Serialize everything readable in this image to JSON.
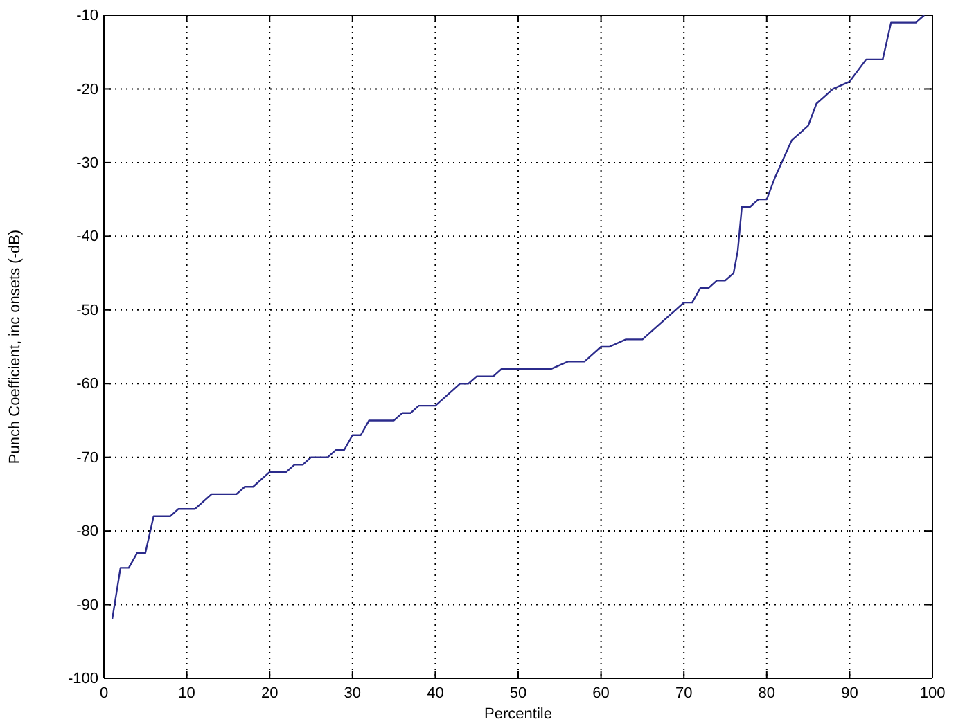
{
  "chart_data": {
    "type": "line",
    "xlabel": "Percentile",
    "ylabel": "Punch Coefficient, inc onsets (-dB)",
    "x": [
      1,
      2,
      3,
      4,
      5,
      6,
      8,
      9,
      11,
      13,
      16,
      17,
      18,
      20,
      22,
      23,
      24,
      25,
      27,
      28,
      29,
      30,
      31,
      32,
      35,
      36,
      37,
      38,
      40,
      42,
      43,
      44,
      45,
      47,
      48,
      54,
      56,
      58,
      60,
      61,
      63,
      65,
      68,
      69,
      70,
      71,
      72,
      73,
      74,
      75,
      76,
      76.5,
      77,
      78,
      79,
      80,
      81,
      83,
      84,
      85,
      86,
      87,
      88,
      90,
      92,
      94,
      95,
      98,
      99
    ],
    "series": [
      {
        "color": "#2b2b8c",
        "values": [
          -92,
          -85,
          -85,
          -83,
          -83,
          -78,
          -78,
          -77,
          -77,
          -75,
          -75,
          -74,
          -74,
          -72,
          -72,
          -71,
          -71,
          -70,
          -70,
          -69,
          -69,
          -67,
          -67,
          -65,
          -65,
          -64,
          -64,
          -63,
          -63,
          -61,
          -60,
          -60,
          -59,
          -59,
          -58,
          -58,
          -57,
          -57,
          -55,
          -55,
          -54,
          -54,
          -51,
          -50,
          -49,
          -49,
          -47,
          -47,
          -46,
          -46,
          -45,
          -42,
          -36,
          -36,
          -35,
          -35,
          -32,
          -27,
          -26,
          -25,
          -22,
          -21,
          -20,
          -19,
          -16,
          -16,
          -11,
          -11,
          -10
        ]
      }
    ],
    "xlim": [
      0,
      100
    ],
    "xticks": [
      0,
      10,
      20,
      30,
      40,
      50,
      60,
      70,
      80,
      90,
      100
    ],
    "ylim": [
      -100,
      -10
    ],
    "yticks": [
      -100,
      -90,
      -80,
      -70,
      -60,
      -50,
      -40,
      -30,
      -20,
      -10
    ],
    "grid": true,
    "marker": "none",
    "line_style": "solid"
  }
}
